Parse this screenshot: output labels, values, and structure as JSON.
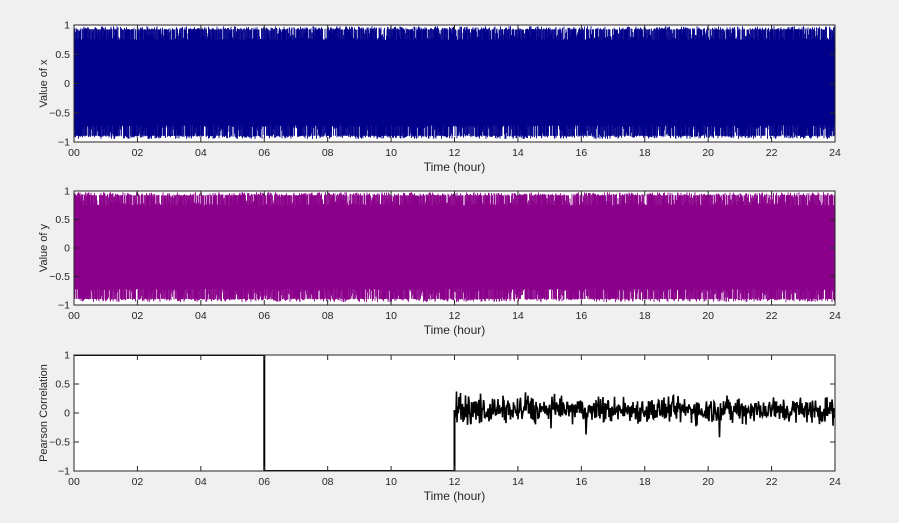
{
  "figure": {
    "background": "#f0f0f0"
  },
  "chart_data": [
    {
      "type": "line",
      "xlabel": "Time (hour)",
      "ylabel": "Value of x",
      "xlim": [
        0,
        24
      ],
      "ylim": [
        -1,
        1
      ],
      "xticks": [
        0,
        2,
        4,
        6,
        8,
        10,
        12,
        14,
        16,
        18,
        20,
        22,
        24
      ],
      "xtick_labels": [
        "00",
        "02",
        "04",
        "06",
        "08",
        "10",
        "12",
        "14",
        "16",
        "18",
        "20",
        "22",
        "24"
      ],
      "yticks": [
        -1,
        -0.5,
        0,
        0.5,
        1
      ],
      "ytick_labels": [
        "−1",
        "−0.5",
        "0",
        "0.5",
        "1"
      ],
      "grid": false,
      "series": [
        {
          "color": "#00008b",
          "description": "dense random signal, values fill range about -0.95 to 0.98",
          "segments": [
            {
              "x_start": 0,
              "x_end": 24,
              "mean": 0,
              "min": -0.95,
              "max": 0.98
            }
          ]
        }
      ]
    },
    {
      "type": "line",
      "xlabel": "Time (hour)",
      "ylabel": "Value of y",
      "xlim": [
        0,
        24
      ],
      "ylim": [
        -1,
        1
      ],
      "xticks": [
        0,
        2,
        4,
        6,
        8,
        10,
        12,
        14,
        16,
        18,
        20,
        22,
        24
      ],
      "xtick_labels": [
        "00",
        "02",
        "04",
        "06",
        "08",
        "10",
        "12",
        "14",
        "16",
        "18",
        "20",
        "22",
        "24"
      ],
      "yticks": [
        -1,
        -0.5,
        0,
        0.5,
        1
      ],
      "ytick_labels": [
        "−1",
        "−0.5",
        "0",
        "0.5",
        "1"
      ],
      "grid": false,
      "series": [
        {
          "color": "#8b008b",
          "description": "dense random signal, values fill range about -0.95 to 0.98",
          "segments": [
            {
              "x_start": 0,
              "x_end": 24,
              "mean": 0,
              "min": -0.95,
              "max": 0.98
            }
          ]
        }
      ]
    },
    {
      "type": "line",
      "xlabel": "Time (hour)",
      "ylabel": "Pearson Correlation",
      "xlim": [
        0,
        24
      ],
      "ylim": [
        -1,
        1
      ],
      "xticks": [
        0,
        2,
        4,
        6,
        8,
        10,
        12,
        14,
        16,
        18,
        20,
        22,
        24
      ],
      "xtick_labels": [
        "00",
        "02",
        "04",
        "06",
        "08",
        "10",
        "12",
        "14",
        "16",
        "18",
        "20",
        "22",
        "24"
      ],
      "yticks": [
        -1,
        -0.5,
        0,
        0.5,
        1
      ],
      "ytick_labels": [
        "−1",
        "−0.5",
        "0",
        "0.5",
        "1"
      ],
      "grid": false,
      "series": [
        {
          "color": "#000000",
          "points": [
            [
              0,
              1
            ],
            [
              6,
              1
            ],
            [
              6,
              -1
            ],
            [
              12,
              -1
            ],
            [
              12,
              0.05
            ]
          ],
          "noise_segment": {
            "x_start": 12,
            "x_end": 24,
            "mean": 0.05,
            "min": -0.45,
            "max": 0.38
          }
        }
      ]
    }
  ]
}
